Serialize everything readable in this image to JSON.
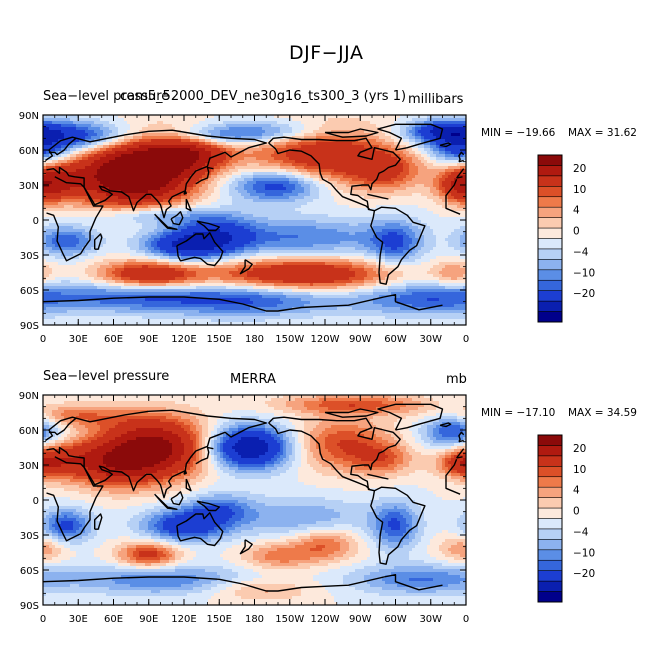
{
  "figure": {
    "title": "DJF−JJA"
  },
  "axes": {
    "lat_labels": [
      "90N",
      "60N",
      "30N",
      "0",
      "30S",
      "60S",
      "90S"
    ],
    "lon_labels": [
      "0",
      "30E",
      "60E",
      "90E",
      "120E",
      "150E",
      "180",
      "150W",
      "120W",
      "90W",
      "60W",
      "30W",
      "0"
    ]
  },
  "colorbar": {
    "labels": [
      "20",
      "10",
      "4",
      "0",
      "−4",
      "−10",
      "−20"
    ],
    "colors": [
      "#8b0a0a",
      "#b01a10",
      "#c8321a",
      "#dc5028",
      "#ee7a4a",
      "#f6a37e",
      "#fbcbb0",
      "#fde9dc",
      "#dbe9fb",
      "#b6d0f5",
      "#8cb2ef",
      "#5b8ee6",
      "#3566dc",
      "#1c3ed2",
      "#0a1fb0",
      "#00008b"
    ]
  },
  "panels": [
    {
      "left_title": "Sea−level pressure",
      "center_title": "cam5_52000_DEV_ne30g16_ts300_3 (yrs 1)",
      "units": "millibars",
      "min_label": "MIN = −19.66",
      "max_label": "MAX =  31.62",
      "min": -19.66,
      "max": 31.62
    },
    {
      "left_title": "Sea−level pressure",
      "center_title": "MERRA",
      "units": "mb",
      "min_label": "MIN = −17.10",
      "max_label": "MAX =  34.59",
      "min": -17.1,
      "max": 34.59
    }
  ]
}
